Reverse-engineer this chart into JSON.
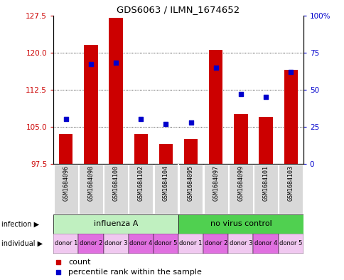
{
  "title": "GDS6063 / ILMN_1674652",
  "samples": [
    "GSM1684096",
    "GSM1684098",
    "GSM1684100",
    "GSM1684102",
    "GSM1684104",
    "GSM1684095",
    "GSM1684097",
    "GSM1684099",
    "GSM1684101",
    "GSM1684103"
  ],
  "bar_values": [
    103.5,
    121.5,
    127.0,
    103.5,
    101.5,
    102.5,
    120.5,
    107.5,
    107.0,
    116.5
  ],
  "dot_values": [
    30,
    67,
    68,
    30,
    27,
    28,
    65,
    47,
    45,
    62
  ],
  "ylim_left": [
    97.5,
    127.5
  ],
  "ylim_right": [
    0,
    100
  ],
  "yticks_left": [
    97.5,
    105,
    112.5,
    120,
    127.5
  ],
  "yticks_right": [
    0,
    25,
    50,
    75,
    100
  ],
  "infection_groups": [
    {
      "label": "influenza A",
      "color": "#c0f0c0",
      "start": 0,
      "end": 5
    },
    {
      "label": "no virus control",
      "color": "#50d050",
      "start": 5,
      "end": 10
    }
  ],
  "individual_labels": [
    "donor 1",
    "donor 2",
    "donor 3",
    "donor 4",
    "donor 5",
    "donor 1",
    "donor 2",
    "donor 3",
    "donor 4",
    "donor 5"
  ],
  "individual_colors": [
    "#f0c8f0",
    "#e070e0",
    "#f0c8f0",
    "#e070e0",
    "#e070e0",
    "#f0c8f0",
    "#e070e0",
    "#f0c8f0",
    "#e070e0",
    "#f0c8f0"
  ],
  "bar_color": "#cc0000",
  "dot_color": "#0000cc",
  "bar_bottom": 97.5,
  "legend_count_label": "count",
  "legend_percentile_label": "percentile rank within the sample",
  "infection_label": "infection",
  "individual_label": "individual",
  "ytick_left_color": "#cc0000",
  "ytick_right_color": "#0000cc",
  "sample_bg_color": "#c8c8c8",
  "sample_box_color": "#d8d8d8",
  "fig_bg_color": "#ffffff"
}
